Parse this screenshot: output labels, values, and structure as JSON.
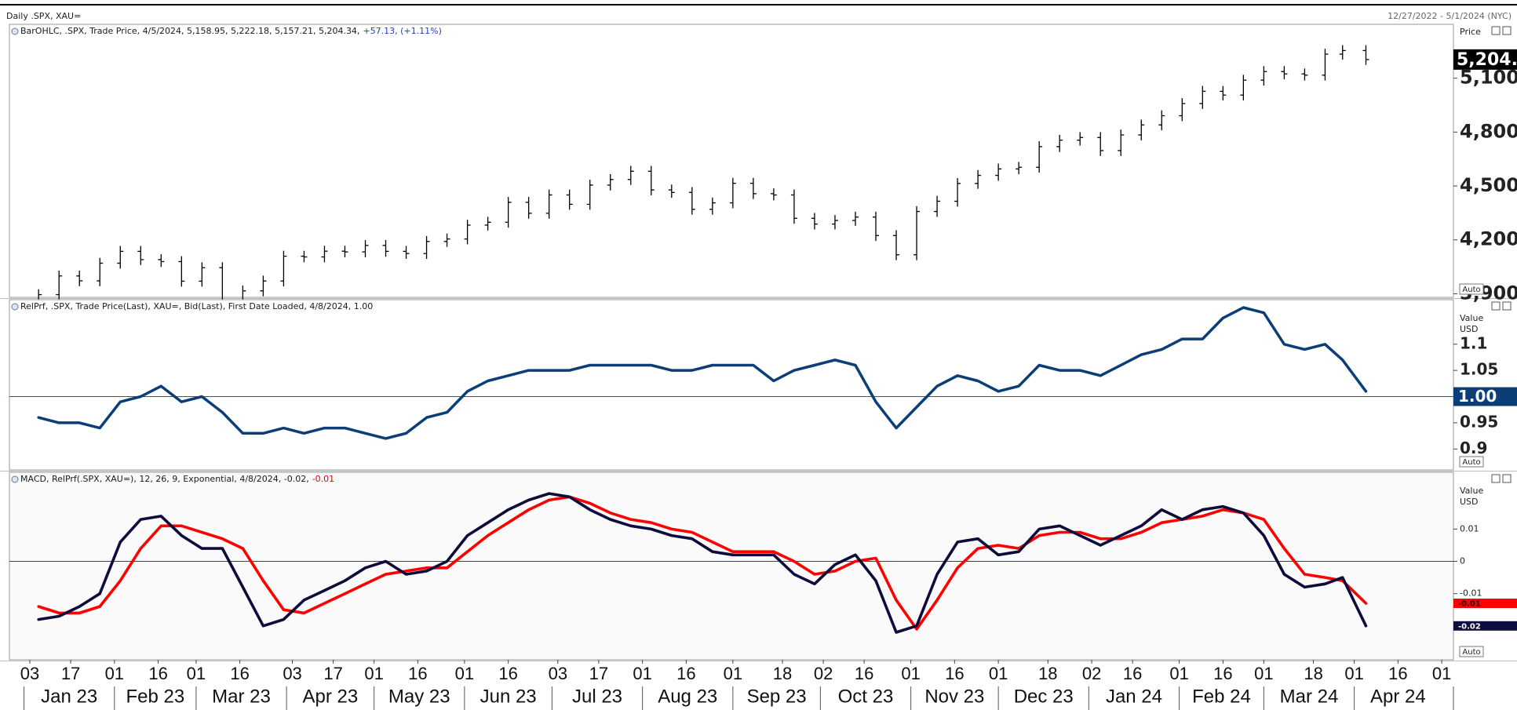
{
  "header": {
    "title": "Daily .SPX, XAU=",
    "range": "12/27/2022 - 5/1/2024 (NYC)"
  },
  "chart_data": [
    {
      "type": "ohlc",
      "title": "BarOHLC, .SPX, Trade Price, 4/5/2024, 5,158.95, 5,222.18, 5,157.21, 5,204.34,",
      "title_extra": "+57.13, (+1.11%)",
      "title_extra_color": "#1f3fbf",
      "axis_title": [
        "Price"
      ],
      "scale_button": "Auto",
      "color": "#000000",
      "last_label": "5,204.",
      "xlim": [
        "2022-12-27",
        "2024-05-05"
      ],
      "x": [
        "2023-01-06",
        "2023-01-13",
        "2023-01-20",
        "2023-01-27",
        "2023-02-03",
        "2023-02-10",
        "2023-02-17",
        "2023-02-24",
        "2023-03-03",
        "2023-03-10",
        "2023-03-17",
        "2023-03-24",
        "2023-03-31",
        "2023-04-07",
        "2023-04-14",
        "2023-04-21",
        "2023-04-28",
        "2023-05-05",
        "2023-05-12",
        "2023-05-19",
        "2023-05-26",
        "2023-06-02",
        "2023-06-09",
        "2023-06-16",
        "2023-06-23",
        "2023-06-30",
        "2023-07-07",
        "2023-07-14",
        "2023-07-21",
        "2023-07-28",
        "2023-08-04",
        "2023-08-11",
        "2023-08-18",
        "2023-08-25",
        "2023-09-01",
        "2023-09-08",
        "2023-09-15",
        "2023-09-22",
        "2023-09-29",
        "2023-10-06",
        "2023-10-13",
        "2023-10-20",
        "2023-10-27",
        "2023-11-03",
        "2023-11-10",
        "2023-11-17",
        "2023-11-24",
        "2023-12-01",
        "2023-12-08",
        "2023-12-15",
        "2023-12-22",
        "2023-12-29",
        "2024-01-05",
        "2024-01-12",
        "2024-01-19",
        "2024-01-26",
        "2024-02-02",
        "2024-02-09",
        "2024-02-16",
        "2024-02-23",
        "2024-03-01",
        "2024-03-08",
        "2024-03-15",
        "2024-03-22",
        "2024-03-28",
        "2024-04-05"
      ],
      "open": [
        3853,
        3895,
        3999,
        3972,
        4070,
        4136,
        4090,
        4079,
        3970,
        4045,
        3861,
        3916,
        3971,
        4109,
        4105,
        4137,
        4133,
        4169,
        4136,
        4124,
        4191,
        4205,
        4282,
        4298,
        4409,
        4348,
        4450,
        4398,
        4505,
        4536,
        4582,
        4478,
        4464,
        4370,
        4406,
        4515,
        4457,
        4450,
        4320,
        4288,
        4308,
        4327,
        4224,
        4117,
        4358,
        4415,
        4514,
        4559,
        4595,
        4604,
        4719,
        4755,
        4770,
        4697,
        4784,
        4840,
        4891,
        4959,
        5027,
        5006,
        5089,
        5137,
        5124,
        5117,
        5234,
        5254
      ],
      "high": [
        3925,
        4029,
        4029,
        4100,
        4166,
        4166,
        4120,
        4109,
        4075,
        4075,
        3946,
        4001,
        4139,
        4139,
        4167,
        4167,
        4199,
        4199,
        4166,
        4221,
        4235,
        4312,
        4328,
        4439,
        4439,
        4480,
        4480,
        4535,
        4566,
        4612,
        4612,
        4508,
        4494,
        4436,
        4545,
        4545,
        4487,
        4480,
        4350,
        4338,
        4357,
        4357,
        4254,
        4388,
        4445,
        4544,
        4589,
        4625,
        4634,
        4749,
        4785,
        4800,
        4800,
        4814,
        4870,
        4921,
        4989,
        5057,
        5057,
        5119,
        5167,
        5167,
        5154,
        5264,
        5284,
        5284
      ],
      "low": [
        3823,
        3865,
        3942,
        3942,
        4040,
        4060,
        4049,
        3940,
        3940,
        3831,
        3831,
        3886,
        3941,
        4075,
        4075,
        4103,
        4103,
        4106,
        4094,
        4094,
        4161,
        4175,
        4252,
        4268,
        4318,
        4318,
        4368,
        4368,
        4475,
        4506,
        4448,
        4434,
        4340,
        4340,
        4376,
        4427,
        4420,
        4290,
        4258,
        4258,
        4278,
        4194,
        4087,
        4087,
        4328,
        4385,
        4484,
        4529,
        4565,
        4574,
        4689,
        4725,
        4667,
        4667,
        4754,
        4810,
        4861,
        4929,
        4976,
        4976,
        5059,
        5094,
        5087,
        5087,
        5204,
        5174
      ],
      "close": [
        3895,
        3999,
        3972,
        4070,
        4136,
        4090,
        4079,
        3970,
        4045,
        3861,
        3916,
        3971,
        4109,
        4105,
        4137,
        4133,
        4169,
        4136,
        4124,
        4191,
        4205,
        4282,
        4298,
        4409,
        4348,
        4450,
        4398,
        4505,
        4536,
        4582,
        4478,
        4464,
        4370,
        4406,
        4515,
        4457,
        4450,
        4320,
        4288,
        4308,
        4327,
        4224,
        4117,
        4358,
        4415,
        4514,
        4559,
        4595,
        4604,
        4719,
        4755,
        4770,
        4697,
        4784,
        4840,
        4891,
        4959,
        5027,
        5006,
        5089,
        5137,
        5124,
        5117,
        5234,
        5254,
        5204
      ],
      "ylim": [
        3880,
        5400
      ],
      "yticks": [
        {
          "value": 3900,
          "label": "3,900"
        },
        {
          "value": 4200,
          "label": "4,200"
        },
        {
          "value": 4500,
          "label": "4,500"
        },
        {
          "value": 4800,
          "label": "4,800"
        },
        {
          "value": 5100,
          "label": "5,100"
        }
      ]
    },
    {
      "type": "line",
      "title": "RelPrf, .SPX, Trade Price(Last), XAU=, Bid(Last), First Date Loaded, 4/8/2024, 1.00",
      "axis_title": [
        "Value",
        "USD"
      ],
      "scale_button": "Auto",
      "baseline": {
        "value": 1,
        "label": "1.00"
      },
      "xlim": [
        "2022-12-27",
        "2024-05-05"
      ],
      "x": [
        "2023-01-06",
        "2023-01-13",
        "2023-01-20",
        "2023-01-27",
        "2023-02-03",
        "2023-02-10",
        "2023-02-17",
        "2023-02-24",
        "2023-03-03",
        "2023-03-10",
        "2023-03-17",
        "2023-03-24",
        "2023-03-31",
        "2023-04-07",
        "2023-04-14",
        "2023-04-21",
        "2023-04-28",
        "2023-05-05",
        "2023-05-12",
        "2023-05-19",
        "2023-05-26",
        "2023-06-02",
        "2023-06-09",
        "2023-06-16",
        "2023-06-23",
        "2023-06-30",
        "2023-07-07",
        "2023-07-14",
        "2023-07-21",
        "2023-07-28",
        "2023-08-04",
        "2023-08-11",
        "2023-08-18",
        "2023-08-25",
        "2023-09-01",
        "2023-09-08",
        "2023-09-15",
        "2023-09-22",
        "2023-09-29",
        "2023-10-06",
        "2023-10-13",
        "2023-10-20",
        "2023-10-27",
        "2023-11-03",
        "2023-11-10",
        "2023-11-17",
        "2023-11-24",
        "2023-12-01",
        "2023-12-08",
        "2023-12-15",
        "2023-12-22",
        "2023-12-29",
        "2024-01-05",
        "2024-01-12",
        "2024-01-19",
        "2024-01-26",
        "2024-02-02",
        "2024-02-09",
        "2024-02-16",
        "2024-02-23",
        "2024-03-01",
        "2024-03-08",
        "2024-03-15",
        "2024-03-22",
        "2024-03-28",
        "2024-04-05"
      ],
      "series": [
        {
          "color": "#0b3d77",
          "values": [
            0.96,
            0.95,
            0.95,
            0.94,
            0.99,
            1.0,
            1.02,
            0.99,
            1.0,
            0.97,
            0.93,
            0.93,
            0.94,
            0.93,
            0.94,
            0.94,
            0.93,
            0.92,
            0.93,
            0.96,
            0.97,
            1.01,
            1.03,
            1.04,
            1.05,
            1.05,
            1.05,
            1.06,
            1.06,
            1.06,
            1.06,
            1.05,
            1.05,
            1.06,
            1.06,
            1.06,
            1.03,
            1.05,
            1.06,
            1.07,
            1.06,
            0.99,
            0.94,
            0.98,
            1.02,
            1.04,
            1.03,
            1.01,
            1.02,
            1.06,
            1.05,
            1.05,
            1.04,
            1.06,
            1.08,
            1.09,
            1.11,
            1.11,
            1.15,
            1.17,
            1.16,
            1.1,
            1.09,
            1.1,
            1.07,
            1.01
          ]
        }
      ],
      "ylim": [
        0.86,
        1.185
      ],
      "yticks": [
        0.9,
        0.95,
        1.05,
        1.1
      ]
    },
    {
      "type": "line",
      "title": "MACD, RelPrf(.SPX, XAU=),  12, 26, 9, Exponential, 4/8/2024, -0.02,",
      "title_extra": "-0.01",
      "title_extra_color": "#e00000",
      "axis_title": [
        "Value",
        "USD"
      ],
      "scale_button": "Auto",
      "zero_line": true,
      "xlim": [
        "2022-12-27",
        "2024-05-05"
      ],
      "x": [
        "2023-01-06",
        "2023-01-13",
        "2023-01-20",
        "2023-01-27",
        "2023-02-03",
        "2023-02-10",
        "2023-02-17",
        "2023-02-24",
        "2023-03-03",
        "2023-03-10",
        "2023-03-17",
        "2023-03-24",
        "2023-03-31",
        "2023-04-07",
        "2023-04-14",
        "2023-04-21",
        "2023-04-28",
        "2023-05-05",
        "2023-05-12",
        "2023-05-19",
        "2023-05-26",
        "2023-06-02",
        "2023-06-09",
        "2023-06-16",
        "2023-06-23",
        "2023-06-30",
        "2023-07-07",
        "2023-07-14",
        "2023-07-21",
        "2023-07-28",
        "2023-08-04",
        "2023-08-11",
        "2023-08-18",
        "2023-08-25",
        "2023-09-01",
        "2023-09-08",
        "2023-09-15",
        "2023-09-22",
        "2023-09-29",
        "2023-10-06",
        "2023-10-13",
        "2023-10-20",
        "2023-10-27",
        "2023-11-03",
        "2023-11-10",
        "2023-11-17",
        "2023-11-24",
        "2023-12-01",
        "2023-12-08",
        "2023-12-15",
        "2023-12-22",
        "2023-12-29",
        "2024-01-05",
        "2024-01-12",
        "2024-01-19",
        "2024-01-26",
        "2024-02-02",
        "2024-02-09",
        "2024-02-16",
        "2024-02-23",
        "2024-03-01",
        "2024-03-08",
        "2024-03-15",
        "2024-03-22",
        "2024-03-28",
        "2024-04-05"
      ],
      "series": [
        {
          "color": "#ff0000",
          "last_label": "-0.01",
          "values": [
            -0.014,
            -0.016,
            -0.016,
            -0.014,
            -0.006,
            0.004,
            0.011,
            0.011,
            0.009,
            0.007,
            0.004,
            -0.006,
            -0.015,
            -0.016,
            -0.013,
            -0.01,
            -0.007,
            -0.004,
            -0.003,
            -0.002,
            -0.002,
            0.003,
            0.008,
            0.012,
            0.016,
            0.019,
            0.02,
            0.018,
            0.015,
            0.013,
            0.012,
            0.01,
            0.009,
            0.006,
            0.003,
            0.003,
            0.003,
            0,
            -0.004,
            -0.003,
            0,
            0.001,
            -0.012,
            -0.021,
            -0.012,
            -0.002,
            0.004,
            0.005,
            0.004,
            0.008,
            0.009,
            0.009,
            0.007,
            0.007,
            0.009,
            0.012,
            0.013,
            0.014,
            0.016,
            0.015,
            0.013,
            0.004,
            -0.004,
            -0.005,
            -0.006,
            -0.013
          ]
        },
        {
          "color": "#0d0d3d",
          "last_label": "-0.02",
          "values": [
            -0.018,
            -0.017,
            -0.014,
            -0.01,
            0.006,
            0.013,
            0.014,
            0.008,
            0.004,
            0.004,
            -0.008,
            -0.02,
            -0.018,
            -0.012,
            -0.009,
            -0.006,
            -0.002,
            0,
            -0.004,
            -0.003,
            0,
            0.008,
            0.012,
            0.016,
            0.019,
            0.021,
            0.02,
            0.016,
            0.013,
            0.011,
            0.01,
            0.008,
            0.007,
            0.003,
            0.002,
            0.002,
            0.002,
            -0.004,
            -0.007,
            -0.001,
            0.002,
            -0.006,
            -0.022,
            -0.02,
            -0.004,
            0.006,
            0.007,
            0.002,
            0.003,
            0.01,
            0.011,
            0.008,
            0.005,
            0.008,
            0.011,
            0.016,
            0.013,
            0.016,
            0.017,
            0.015,
            0.008,
            -0.004,
            -0.008,
            -0.007,
            -0.005,
            -0.02
          ]
        }
      ],
      "ylim": [
        -0.0305,
        0.0276
      ],
      "yticks": [
        -0.01,
        0,
        0.01
      ],
      "xticks": [
        {
          "value": "2023-01-03",
          "label": "03"
        },
        {
          "value": "2023-01-17",
          "label": "17"
        },
        {
          "value": "2023-02-01",
          "label": "01"
        },
        {
          "value": "2023-02-16",
          "label": "16"
        },
        {
          "value": "2023-03-01",
          "label": "01"
        },
        {
          "value": "2023-03-16",
          "label": "16"
        },
        {
          "value": "2023-04-03",
          "label": "03"
        },
        {
          "value": "2023-04-17",
          "label": "17"
        },
        {
          "value": "2023-05-01",
          "label": "01"
        },
        {
          "value": "2023-05-16",
          "label": "16"
        },
        {
          "value": "2023-06-01",
          "label": "01"
        },
        {
          "value": "2023-06-16",
          "label": "16"
        },
        {
          "value": "2023-07-03",
          "label": "03"
        },
        {
          "value": "2023-07-17",
          "label": "17"
        },
        {
          "value": "2023-08-01",
          "label": "01"
        },
        {
          "value": "2023-08-16",
          "label": "16"
        },
        {
          "value": "2023-09-01",
          "label": "01"
        },
        {
          "value": "2023-09-18",
          "label": "18"
        },
        {
          "value": "2023-10-02",
          "label": "02"
        },
        {
          "value": "2023-10-16",
          "label": "16"
        },
        {
          "value": "2023-11-01",
          "label": "01"
        },
        {
          "value": "2023-11-16",
          "label": "16"
        },
        {
          "value": "2023-12-01",
          "label": "01"
        },
        {
          "value": "2023-12-18",
          "label": "18"
        },
        {
          "value": "2024-01-02",
          "label": "02"
        },
        {
          "value": "2024-01-16",
          "label": "16"
        },
        {
          "value": "2024-02-01",
          "label": "01"
        },
        {
          "value": "2024-02-16",
          "label": "16"
        },
        {
          "value": "2024-03-01",
          "label": "01"
        },
        {
          "value": "2024-03-18",
          "label": "18"
        },
        {
          "value": "2024-04-01",
          "label": "01"
        },
        {
          "value": "2024-04-16",
          "label": "16"
        },
        {
          "value": "2024-05-01",
          "label": "01"
        }
      ],
      "month_labels": [
        {
          "value": "2023-01",
          "label": "Jan 23"
        },
        {
          "value": "2023-02",
          "label": "Feb 23"
        },
        {
          "value": "2023-03",
          "label": "Mar 23"
        },
        {
          "value": "2023-04",
          "label": "Apr 23"
        },
        {
          "value": "2023-05",
          "label": "May 23"
        },
        {
          "value": "2023-06",
          "label": "Jun 23"
        },
        {
          "value": "2023-07",
          "label": "Jul 23"
        },
        {
          "value": "2023-08",
          "label": "Aug 23"
        },
        {
          "value": "2023-09",
          "label": "Sep 23"
        },
        {
          "value": "2023-10",
          "label": "Oct 23"
        },
        {
          "value": "2023-11",
          "label": "Nov 23"
        },
        {
          "value": "2023-12",
          "label": "Dec 23"
        },
        {
          "value": "2024-01",
          "label": "Jan 24"
        },
        {
          "value": "2024-02",
          "label": "Feb 24"
        },
        {
          "value": "2024-03",
          "label": "Mar 24"
        },
        {
          "value": "2024-04",
          "label": "Apr 24"
        }
      ]
    }
  ]
}
